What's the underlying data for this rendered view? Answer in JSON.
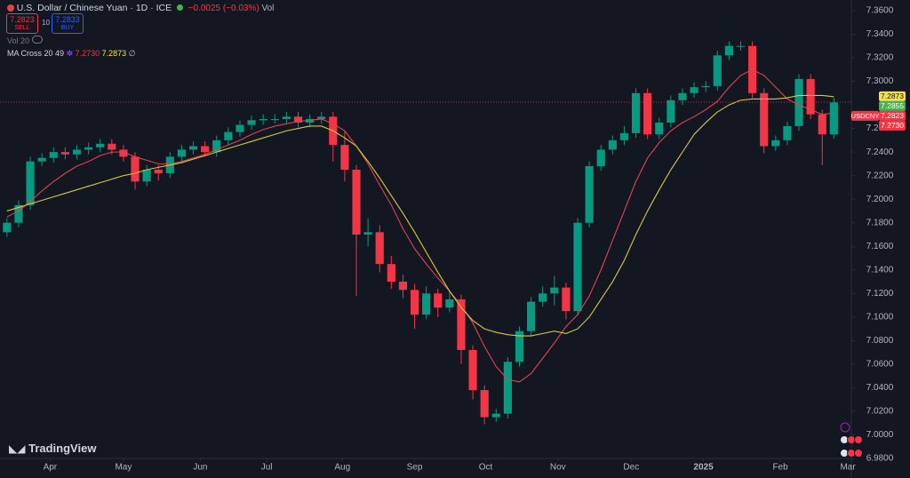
{
  "header": {
    "title": "U.S. Dollar / Chinese Yuan · 1D · ICE",
    "change": "−0.0025 (−0.03%)",
    "vol_label": "Vol",
    "sell_price": "7.2823",
    "sell_label": "SELL",
    "spread": "10",
    "buy_price": "7.2833",
    "buy_label": "BUY",
    "vol_indicator": "Vol 20",
    "ma_indicator": "MA Cross 20 49",
    "ma_fast_value": "7.2730",
    "ma_slow_value": "7.2873",
    "ma_extra": "∅"
  },
  "logo": "TradingView",
  "chart_data": {
    "type": "candlestick",
    "symbol": "USDCNY",
    "up_color": "#089981",
    "down_color": "#f23645",
    "xlim": [
      -0.6,
      72.5
    ],
    "xticks": [
      {
        "value": 3.7,
        "label": "Apr"
      },
      {
        "value": 10,
        "label": "May"
      },
      {
        "value": 16.6,
        "label": "Jun"
      },
      {
        "value": 22.3,
        "label": "Jul"
      },
      {
        "value": 28.8,
        "label": "Aug"
      },
      {
        "value": 35,
        "label": "Sep"
      },
      {
        "value": 41.1,
        "label": "Oct"
      },
      {
        "value": 47.3,
        "label": "Nov"
      },
      {
        "value": 53.6,
        "label": "Dec"
      },
      {
        "value": 59.8,
        "label": "2025"
      },
      {
        "value": 66.4,
        "label": "Feb"
      },
      {
        "value": 72.2,
        "label": "Mar"
      }
    ],
    "ylim": [
      6.98,
      7.369
    ],
    "yticks": [
      {
        "value": 7.36,
        "label": "7.3600"
      },
      {
        "value": 7.34,
        "label": "7.3400"
      },
      {
        "value": 7.32,
        "label": "7.3200"
      },
      {
        "value": 7.3,
        "label": "7.3000"
      },
      {
        "value": 7.26,
        "label": "7.2600"
      },
      {
        "value": 7.24,
        "label": "7.2400"
      },
      {
        "value": 7.22,
        "label": "7.2200"
      },
      {
        "value": 7.2,
        "label": "7.2000"
      },
      {
        "value": 7.18,
        "label": "7.1800"
      },
      {
        "value": 7.16,
        "label": "7.1600"
      },
      {
        "value": 7.14,
        "label": "7.1400"
      },
      {
        "value": 7.12,
        "label": "7.1200"
      },
      {
        "value": 7.1,
        "label": "7.1000"
      },
      {
        "value": 7.08,
        "label": "7.0800"
      },
      {
        "value": 7.06,
        "label": "7.0600"
      },
      {
        "value": 7.04,
        "label": "7.0400"
      },
      {
        "value": 7.02,
        "label": "7.0200"
      },
      {
        "value": 7.0,
        "label": "7.0000"
      },
      {
        "value": 6.98,
        "label": "6.9800"
      }
    ],
    "grid": false,
    "x": [
      0,
      1,
      2,
      3,
      4,
      5,
      6,
      7,
      8,
      9,
      10,
      11,
      12,
      13,
      14,
      15,
      16,
      17,
      18,
      19,
      20,
      21,
      22,
      23,
      24,
      25,
      26,
      27,
      28,
      29,
      30,
      31,
      32,
      33,
      34,
      35,
      36,
      37,
      38,
      39,
      40,
      41,
      42,
      43,
      44,
      45,
      46,
      47,
      48,
      49,
      50,
      51,
      52,
      53,
      54,
      55,
      56,
      57,
      58,
      59,
      60,
      61,
      62,
      63,
      64,
      65,
      66,
      67,
      68,
      69,
      70,
      71
    ],
    "open": [
      7.172,
      7.18,
      7.195,
      7.232,
      7.235,
      7.24,
      7.238,
      7.242,
      7.244,
      7.247,
      7.242,
      7.236,
      7.215,
      7.225,
      7.222,
      7.236,
      7.242,
      7.245,
      7.24,
      7.25,
      7.257,
      7.263,
      7.267,
      7.268,
      7.268,
      7.27,
      7.265,
      7.268,
      7.27,
      7.246,
      7.225,
      7.17,
      7.172,
      7.145,
      7.13,
      7.123,
      7.102,
      7.12,
      7.108,
      7.115,
      7.072,
      7.038,
      7.015,
      7.018,
      7.062,
      7.088,
      7.113,
      7.12,
      7.125,
      7.105,
      7.18,
      7.228,
      7.242,
      7.25,
      7.256,
      7.29,
      7.255,
      7.265,
      7.284,
      7.29,
      7.295,
      7.296,
      7.322,
      7.33,
      7.33,
      7.29,
      7.245,
      7.25,
      7.262,
      7.302,
      7.272,
      7.255
    ],
    "high": [
      7.184,
      7.199,
      7.236,
      7.239,
      7.244,
      7.244,
      7.246,
      7.248,
      7.251,
      7.251,
      7.246,
      7.24,
      7.229,
      7.229,
      7.24,
      7.246,
      7.249,
      7.249,
      7.254,
      7.261,
      7.267,
      7.271,
      7.272,
      7.272,
      7.274,
      7.274,
      7.272,
      7.274,
      7.274,
      7.258,
      7.229,
      7.184,
      7.178,
      7.152,
      7.136,
      7.128,
      7.126,
      7.124,
      7.122,
      7.119,
      7.076,
      7.042,
      7.022,
      7.066,
      7.092,
      7.117,
      7.126,
      7.135,
      7.129,
      7.184,
      7.232,
      7.246,
      7.254,
      7.262,
      7.294,
      7.294,
      7.269,
      7.288,
      7.294,
      7.299,
      7.3,
      7.326,
      7.334,
      7.334,
      7.334,
      7.294,
      7.254,
      7.266,
      7.306,
      7.306,
      7.276,
      7.286
    ],
    "low": [
      7.168,
      7.176,
      7.191,
      7.228,
      7.231,
      7.234,
      7.234,
      7.238,
      7.24,
      7.238,
      7.232,
      7.208,
      7.211,
      7.216,
      7.218,
      7.232,
      7.238,
      7.236,
      7.236,
      7.246,
      7.253,
      7.259,
      7.263,
      7.264,
      7.264,
      7.261,
      7.261,
      7.264,
      7.232,
      7.215,
      7.118,
      7.16,
      7.138,
      7.124,
      7.116,
      7.09,
      7.098,
      7.1,
      7.104,
      7.06,
      7.03,
      7.009,
      7.011,
      7.014,
      7.058,
      7.084,
      7.109,
      7.11,
      7.098,
      7.101,
      7.176,
      7.224,
      7.238,
      7.246,
      7.252,
      7.251,
      7.251,
      7.261,
      7.28,
      7.286,
      7.291,
      7.292,
      7.318,
      7.326,
      7.286,
      7.239,
      7.241,
      7.246,
      7.258,
      7.268,
      7.229,
      7.251
    ],
    "close": [
      7.18,
      7.195,
      7.232,
      7.235,
      7.24,
      7.238,
      7.242,
      7.244,
      7.247,
      7.242,
      7.236,
      7.215,
      7.225,
      7.222,
      7.236,
      7.242,
      7.245,
      7.24,
      7.25,
      7.257,
      7.263,
      7.267,
      7.268,
      7.268,
      7.27,
      7.265,
      7.268,
      7.27,
      7.246,
      7.225,
      7.17,
      7.172,
      7.145,
      7.13,
      7.123,
      7.102,
      7.12,
      7.108,
      7.115,
      7.072,
      7.038,
      7.015,
      7.018,
      7.062,
      7.088,
      7.113,
      7.12,
      7.125,
      7.105,
      7.18,
      7.228,
      7.242,
      7.25,
      7.256,
      7.29,
      7.255,
      7.265,
      7.284,
      7.29,
      7.295,
      7.296,
      7.322,
      7.33,
      7.33,
      7.29,
      7.245,
      7.25,
      7.262,
      7.302,
      7.272,
      7.255,
      7.282
    ],
    "series": [
      {
        "color": "#e0434f",
        "values": [
          7.185,
          7.19,
          7.198,
          7.207,
          7.215,
          7.222,
          7.228,
          7.232,
          7.237,
          7.24,
          7.24,
          7.236,
          7.233,
          7.23,
          7.23,
          7.232,
          7.235,
          7.238,
          7.242,
          7.246,
          7.25,
          7.255,
          7.259,
          7.262,
          7.264,
          7.266,
          7.267,
          7.268,
          7.264,
          7.258,
          7.245,
          7.23,
          7.212,
          7.195,
          7.175,
          7.158,
          7.145,
          7.133,
          7.122,
          7.11,
          7.095,
          7.075,
          7.058,
          7.047,
          7.045,
          7.052,
          7.065,
          7.078,
          7.092,
          7.102,
          7.118,
          7.14,
          7.165,
          7.19,
          7.215,
          7.235,
          7.248,
          7.258,
          7.265,
          7.27,
          7.276,
          7.283,
          7.295,
          7.305,
          7.31,
          7.305,
          7.295,
          7.285,
          7.28,
          7.276,
          7.272,
          7.273
        ]
      },
      {
        "color": "#d8c83a",
        "values": [
          7.19,
          7.193,
          7.196,
          7.199,
          7.202,
          7.205,
          7.208,
          7.211,
          7.214,
          7.217,
          7.22,
          7.222,
          7.225,
          7.227,
          7.229,
          7.231,
          7.234,
          7.237,
          7.24,
          7.243,
          7.246,
          7.249,
          7.252,
          7.255,
          7.258,
          7.26,
          7.262,
          7.262,
          7.258,
          7.252,
          7.245,
          7.232,
          7.218,
          7.203,
          7.188,
          7.172,
          7.155,
          7.138,
          7.122,
          7.108,
          7.097,
          7.09,
          7.087,
          7.085,
          7.084,
          7.084,
          7.086,
          7.088,
          7.086,
          7.09,
          7.1,
          7.115,
          7.13,
          7.148,
          7.17,
          7.19,
          7.208,
          7.225,
          7.24,
          7.255,
          7.265,
          7.274,
          7.28,
          7.284,
          7.285,
          7.285,
          7.285,
          7.286,
          7.288,
          7.288,
          7.288,
          7.287
        ]
      }
    ],
    "price_labels": [
      {
        "value": 7.2873,
        "label": "7.2873",
        "color": "#f5e04a"
      },
      {
        "value": 7.2855,
        "label": "7.2855",
        "color": "#4caf50"
      },
      {
        "value": 7.2823,
        "label": "7.2823",
        "color": "#f23645"
      },
      {
        "value": 7.273,
        "label": "7.2730",
        "color": "#f23645"
      }
    ],
    "last_price_label": 2
  }
}
